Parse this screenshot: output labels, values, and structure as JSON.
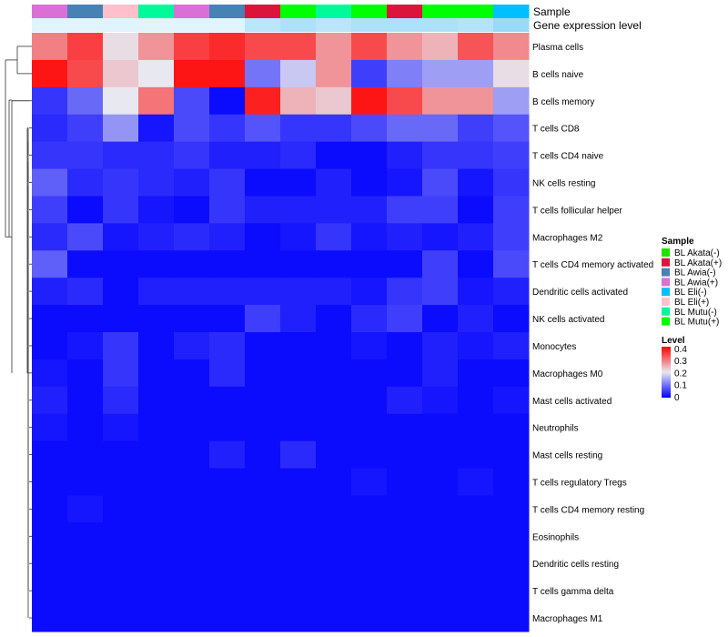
{
  "chart_data": {
    "type": "heatmap",
    "title": "",
    "annotation_rows": [
      "Sample",
      "Gene expression level"
    ],
    "rows": [
      "Plasma cells",
      "B cells naive",
      "B cells memory",
      "T cells CD8",
      "T cells CD4 naive",
      "NK cells resting",
      "T cells follicular helper",
      "Macrophages M2",
      "T cells CD4 memory activated",
      "Dendritic cells activated",
      "NK cells activated",
      "Monocytes",
      "Macrophages M0",
      "Mast cells activated",
      "Neutrophils",
      "Mast cells resting",
      "T cells regulatory  Tregs",
      "T cells CD4 memory resting",
      "Eosinophils",
      "Dendritic cells resting",
      "T cells gamma delta",
      "Macrophages M1"
    ],
    "column_samples": [
      "BL Awia(+)",
      "BL Awia(-)",
      "BL Eli(+)",
      "BL Mutu(-)",
      "BL Awia(+)",
      "BL Awia(-)",
      "BL Akata(+)",
      "BL Mutu(+)",
      "BL Mutu(-)",
      "BL Mutu(+)",
      "BL Akata(+)",
      "BL Mutu(+)",
      "BL Mutu(+)",
      "BL Eli(-)"
    ],
    "gene_expression_level": [
      0.05,
      0.05,
      0.05,
      0.05,
      0.05,
      0.05,
      0.35,
      0.45,
      0.35,
      0.45,
      0.45,
      0.45,
      0.4,
      0.6
    ],
    "values": [
      [
        0.32,
        0.38,
        0.23,
        0.3,
        0.38,
        0.4,
        0.37,
        0.37,
        0.3,
        0.37,
        0.3,
        0.27,
        0.36,
        0.31
      ],
      [
        0.42,
        0.37,
        0.25,
        0.22,
        0.42,
        0.42,
        0.11,
        0.19,
        0.3,
        0.06,
        0.12,
        0.15,
        0.15,
        0.23
      ],
      [
        0.05,
        0.1,
        0.22,
        0.33,
        0.07,
        0.01,
        0.41,
        0.27,
        0.25,
        0.42,
        0.37,
        0.3,
        0.3,
        0.15
      ],
      [
        0.04,
        0.06,
        0.14,
        0.02,
        0.07,
        0.05,
        0.08,
        0.05,
        0.05,
        0.07,
        0.1,
        0.1,
        0.06,
        0.08
      ],
      [
        0.05,
        0.05,
        0.04,
        0.04,
        0.05,
        0.03,
        0.03,
        0.04,
        0.01,
        0.01,
        0.03,
        0.05,
        0.05,
        0.06
      ],
      [
        0.09,
        0.04,
        0.05,
        0.04,
        0.03,
        0.05,
        0.01,
        0.01,
        0.03,
        0.01,
        0.02,
        0.07,
        0.02,
        0.05
      ],
      [
        0.06,
        0.01,
        0.05,
        0.02,
        0.01,
        0.05,
        0.03,
        0.03,
        0.03,
        0.03,
        0.06,
        0.06,
        0.01,
        0.06
      ],
      [
        0.04,
        0.07,
        0.02,
        0.03,
        0.04,
        0.03,
        0.01,
        0.02,
        0.05,
        0.02,
        0.03,
        0.02,
        0.03,
        0.06
      ],
      [
        0.09,
        0.01,
        0.01,
        0.01,
        0.01,
        0.01,
        0.01,
        0.01,
        0.01,
        0.01,
        0.01,
        0.06,
        0.01,
        0.07
      ],
      [
        0.03,
        0.04,
        0.01,
        0.03,
        0.03,
        0.03,
        0.03,
        0.03,
        0.03,
        0.02,
        0.05,
        0.06,
        0.02,
        0.03
      ],
      [
        0.01,
        0.01,
        0.01,
        0.01,
        0.01,
        0.01,
        0.06,
        0.03,
        0.01,
        0.04,
        0.06,
        0.01,
        0.03,
        0.01
      ],
      [
        0.01,
        0.02,
        0.05,
        0.01,
        0.03,
        0.04,
        0.01,
        0.01,
        0.01,
        0.02,
        0.01,
        0.03,
        0.02,
        0.03
      ],
      [
        0.02,
        0.01,
        0.05,
        0.01,
        0.01,
        0.04,
        0.01,
        0.01,
        0.01,
        0.01,
        0.01,
        0.03,
        0.01,
        0.01
      ],
      [
        0.03,
        0.01,
        0.04,
        0.01,
        0.01,
        0.01,
        0.01,
        0.01,
        0.01,
        0.01,
        0.03,
        0.02,
        0.01,
        0.02
      ],
      [
        0.02,
        0.01,
        0.02,
        0.01,
        0.01,
        0.01,
        0.01,
        0.01,
        0.01,
        0.01,
        0.01,
        0.01,
        0.01,
        0.01
      ],
      [
        0.01,
        0.01,
        0.01,
        0.01,
        0.01,
        0.03,
        0.01,
        0.04,
        0.01,
        0.01,
        0.01,
        0.01,
        0.01,
        0.01
      ],
      [
        0.01,
        0.01,
        0.01,
        0.01,
        0.01,
        0.01,
        0.01,
        0.01,
        0.01,
        0.02,
        0.01,
        0.01,
        0.02,
        0.01
      ],
      [
        0.01,
        0.02,
        0.01,
        0.01,
        0.01,
        0.01,
        0.01,
        0.01,
        0.01,
        0.01,
        0.01,
        0.01,
        0.01,
        0.01
      ],
      [
        0.01,
        0.01,
        0.01,
        0.01,
        0.01,
        0.01,
        0.01,
        0.01,
        0.01,
        0.01,
        0.01,
        0.01,
        0.01,
        0.01
      ],
      [
        0.01,
        0.01,
        0.01,
        0.01,
        0.01,
        0.01,
        0.01,
        0.01,
        0.01,
        0.01,
        0.01,
        0.01,
        0.01,
        0.01
      ],
      [
        0.01,
        0.01,
        0.01,
        0.01,
        0.01,
        0.01,
        0.01,
        0.01,
        0.01,
        0.01,
        0.01,
        0.01,
        0.01,
        0.01
      ],
      [
        0.01,
        0.01,
        0.01,
        0.01,
        0.01,
        0.01,
        0.01,
        0.01,
        0.01,
        0.01,
        0.01,
        0.01,
        0.01,
        0.01
      ]
    ],
    "color_scale": {
      "low": "#0000ff",
      "mid": "#e8e8f0",
      "high": "#ff0000"
    },
    "legend": {
      "sample_title": "Sample",
      "sample_items": [
        {
          "label": "BL Akata(-)",
          "color": "#22e000"
        },
        {
          "label": "BL Akata(+)",
          "color": "#dc143c"
        },
        {
          "label": "BL Awia(-)",
          "color": "#4682b4"
        },
        {
          "label": "BL Awia(+)",
          "color": "#da70d6"
        },
        {
          "label": "BL Eli(-)",
          "color": "#00bfff"
        },
        {
          "label": "BL Eli(+)",
          "color": "#ffc0cb"
        },
        {
          "label": "BL Mutu(-)",
          "color": "#00fa9a"
        },
        {
          "label": "BL Mutu(+)",
          "color": "#00ff00"
        }
      ],
      "level_title": "Level",
      "level_ticks": [
        "0.4",
        "0.3",
        "0.2",
        "0.1",
        "0"
      ],
      "placement": "right"
    },
    "dendrogram": "row",
    "grid": false
  }
}
